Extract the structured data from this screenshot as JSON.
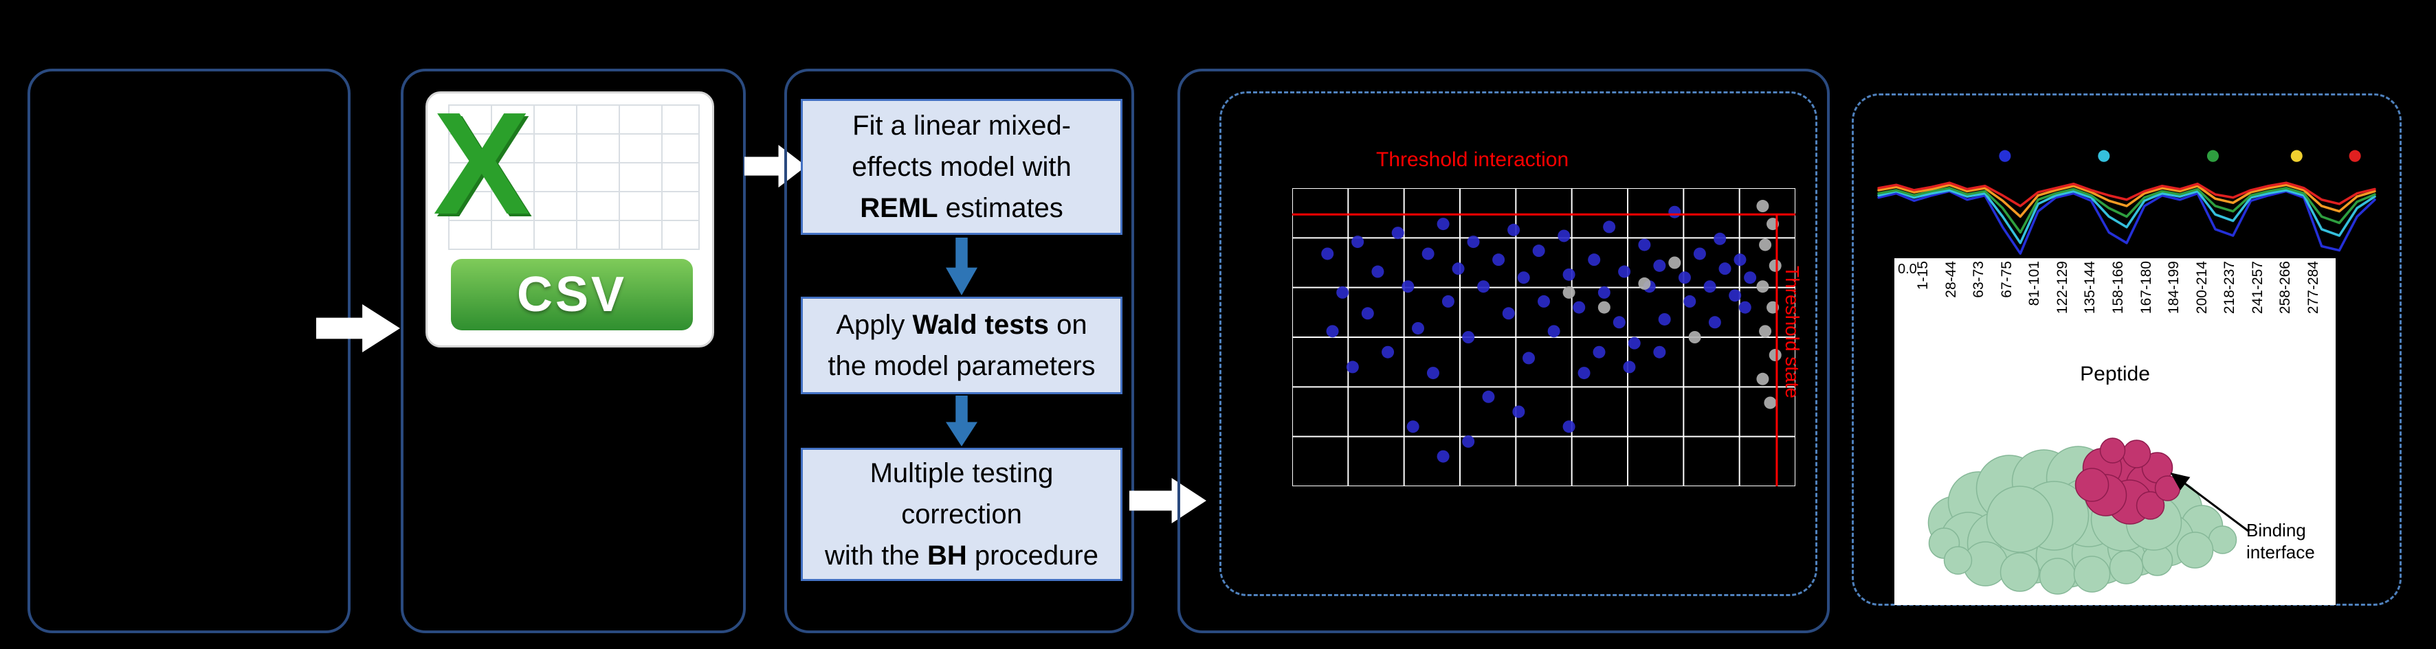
{
  "accent_colors": {
    "panel_border": "#2a4a7f",
    "dashed_border": "#4f81bd",
    "process_box_fill": "#dae3f3",
    "process_box_border": "#4472c4",
    "flow_arrow": "#ffffff",
    "step_arrow": "#2e75b6",
    "threshold": "#ff0000",
    "csv_green": "#2f8f2f"
  },
  "csv_icon": {
    "x_glyph": "X",
    "label": "CSV"
  },
  "method_steps": [
    {
      "pre": "Fit a linear mixed-\neffects model with\n",
      "bold": "REML",
      "post": " estimates"
    },
    {
      "pre": "Apply ",
      "bold": "Wald tests",
      "post": " on\nthe model parameters"
    },
    {
      "pre": "Multiple testing\ncorrection\nwith the ",
      "bold": "BH",
      "post": " procedure"
    }
  ],
  "scatter_panel": {
    "horizontal_threshold_label": "Threshold interaction",
    "vertical_threshold_label": "Threshold state"
  },
  "results_panel": {
    "y_tick": "0.0",
    "peptide_ticks": [
      "1-15",
      "28-44",
      "63-73",
      "67-75",
      "81-101",
      "122-129",
      "135-144",
      "158-166",
      "167-180",
      "184-199",
      "200-214",
      "218-237",
      "241-257",
      "258-266",
      "277-284"
    ],
    "axis_title": "Peptide",
    "annotation": "Binding interface"
  },
  "chart_data": [
    {
      "type": "scatter",
      "title": "",
      "grid": {
        "cols": 9,
        "rows": 6
      },
      "thresholds": {
        "y_frac": 0.088,
        "x_frac": 0.963
      },
      "threshold_color": "#ff0000",
      "threshold_labels": {
        "horizontal": "Threshold interaction",
        "vertical": "Threshold state"
      },
      "series": [
        {
          "name": "significant-peptides",
          "color": "#2a2ac8",
          "points": [
            [
              0.07,
              0.22
            ],
            [
              0.1,
              0.35
            ],
            [
              0.13,
              0.18
            ],
            [
              0.15,
              0.42
            ],
            [
              0.17,
              0.28
            ],
            [
              0.19,
              0.55
            ],
            [
              0.21,
              0.15
            ],
            [
              0.23,
              0.33
            ],
            [
              0.25,
              0.47
            ],
            [
              0.27,
              0.22
            ],
            [
              0.28,
              0.62
            ],
            [
              0.3,
              0.12
            ],
            [
              0.31,
              0.38
            ],
            [
              0.33,
              0.27
            ],
            [
              0.35,
              0.5
            ],
            [
              0.36,
              0.18
            ],
            [
              0.38,
              0.33
            ],
            [
              0.39,
              0.7
            ],
            [
              0.41,
              0.24
            ],
            [
              0.43,
              0.42
            ],
            [
              0.44,
              0.14
            ],
            [
              0.46,
              0.3
            ],
            [
              0.47,
              0.57
            ],
            [
              0.49,
              0.21
            ],
            [
              0.5,
              0.38
            ],
            [
              0.52,
              0.48
            ],
            [
              0.54,
              0.16
            ],
            [
              0.55,
              0.29
            ],
            [
              0.57,
              0.4
            ],
            [
              0.58,
              0.62
            ],
            [
              0.6,
              0.24
            ],
            [
              0.62,
              0.35
            ],
            [
              0.63,
              0.13
            ],
            [
              0.65,
              0.45
            ],
            [
              0.66,
              0.28
            ],
            [
              0.68,
              0.52
            ],
            [
              0.7,
              0.19
            ],
            [
              0.71,
              0.33
            ],
            [
              0.73,
              0.26
            ],
            [
              0.74,
              0.44
            ],
            [
              0.76,
              0.08
            ],
            [
              0.78,
              0.3
            ],
            [
              0.79,
              0.38
            ],
            [
              0.81,
              0.22
            ],
            [
              0.83,
              0.33
            ],
            [
              0.85,
              0.17
            ],
            [
              0.86,
              0.27
            ],
            [
              0.88,
              0.36
            ],
            [
              0.89,
              0.24
            ],
            [
              0.91,
              0.3
            ],
            [
              0.24,
              0.8
            ],
            [
              0.35,
              0.85
            ],
            [
              0.12,
              0.6
            ],
            [
              0.45,
              0.75
            ],
            [
              0.55,
              0.8
            ],
            [
              0.3,
              0.9
            ],
            [
              0.08,
              0.48
            ],
            [
              0.61,
              0.55
            ],
            [
              0.67,
              0.6
            ],
            [
              0.73,
              0.55
            ],
            [
              0.84,
              0.45
            ],
            [
              0.9,
              0.4
            ]
          ]
        },
        {
          "name": "nonsignificant-peptides",
          "color": "#b0b0b0",
          "points": [
            [
              0.935,
              0.06
            ],
            [
              0.955,
              0.12
            ],
            [
              0.94,
              0.19
            ],
            [
              0.96,
              0.26
            ],
            [
              0.935,
              0.33
            ],
            [
              0.955,
              0.4
            ],
            [
              0.94,
              0.48
            ],
            [
              0.96,
              0.56
            ],
            [
              0.935,
              0.64
            ],
            [
              0.95,
              0.72
            ],
            [
              0.7,
              0.32
            ],
            [
              0.62,
              0.4
            ],
            [
              0.55,
              0.35
            ],
            [
              0.76,
              0.25
            ],
            [
              0.8,
              0.5
            ]
          ]
        }
      ]
    },
    {
      "type": "line",
      "title": "",
      "x_count": 29,
      "series": [
        {
          "name": "condition-blue",
          "color": "#2430d8",
          "values": [
            0.42,
            0.38,
            0.45,
            0.4,
            0.36,
            0.44,
            0.4,
            0.7,
            0.95,
            0.55,
            0.42,
            0.38,
            0.45,
            0.75,
            0.85,
            0.5,
            0.4,
            0.44,
            0.38,
            0.72,
            0.78,
            0.45,
            0.4,
            0.36,
            0.42,
            0.88,
            0.92,
            0.6,
            0.44
          ]
        },
        {
          "name": "condition-cyan",
          "color": "#35c0dd",
          "values": [
            0.4,
            0.36,
            0.42,
            0.38,
            0.35,
            0.41,
            0.38,
            0.6,
            0.85,
            0.48,
            0.4,
            0.36,
            0.42,
            0.6,
            0.7,
            0.45,
            0.38,
            0.41,
            0.36,
            0.58,
            0.64,
            0.42,
            0.38,
            0.35,
            0.4,
            0.72,
            0.78,
            0.52,
            0.41
          ]
        },
        {
          "name": "condition-green",
          "color": "#2e9e3f",
          "values": [
            0.38,
            0.35,
            0.4,
            0.36,
            0.33,
            0.39,
            0.36,
            0.52,
            0.75,
            0.44,
            0.38,
            0.34,
            0.4,
            0.52,
            0.6,
            0.42,
            0.36,
            0.39,
            0.34,
            0.5,
            0.55,
            0.4,
            0.36,
            0.33,
            0.38,
            0.6,
            0.66,
            0.46,
            0.39
          ]
        },
        {
          "name": "condition-orange",
          "color": "#f59a23",
          "values": [
            0.35,
            0.32,
            0.37,
            0.34,
            0.3,
            0.36,
            0.33,
            0.45,
            0.6,
            0.4,
            0.35,
            0.31,
            0.37,
            0.45,
            0.5,
            0.38,
            0.33,
            0.36,
            0.31,
            0.43,
            0.47,
            0.37,
            0.33,
            0.3,
            0.35,
            0.5,
            0.55,
            0.41,
            0.36
          ]
        },
        {
          "name": "condition-red",
          "color": "#e02020",
          "values": [
            0.33,
            0.3,
            0.35,
            0.32,
            0.28,
            0.34,
            0.31,
            0.4,
            0.5,
            0.37,
            0.33,
            0.29,
            0.35,
            0.4,
            0.44,
            0.36,
            0.31,
            0.34,
            0.29,
            0.39,
            0.42,
            0.35,
            0.31,
            0.28,
            0.33,
            0.44,
            0.48,
            0.38,
            0.34
          ]
        }
      ],
      "markers": [
        {
          "color": "#2430d8",
          "x": 0.26
        },
        {
          "color": "#35c0dd",
          "x": 0.455
        },
        {
          "color": "#2e9e3f",
          "x": 0.67
        },
        {
          "color": "#f0d030",
          "x": 0.835
        },
        {
          "color": "#e02020",
          "x": 0.95
        }
      ]
    }
  ]
}
